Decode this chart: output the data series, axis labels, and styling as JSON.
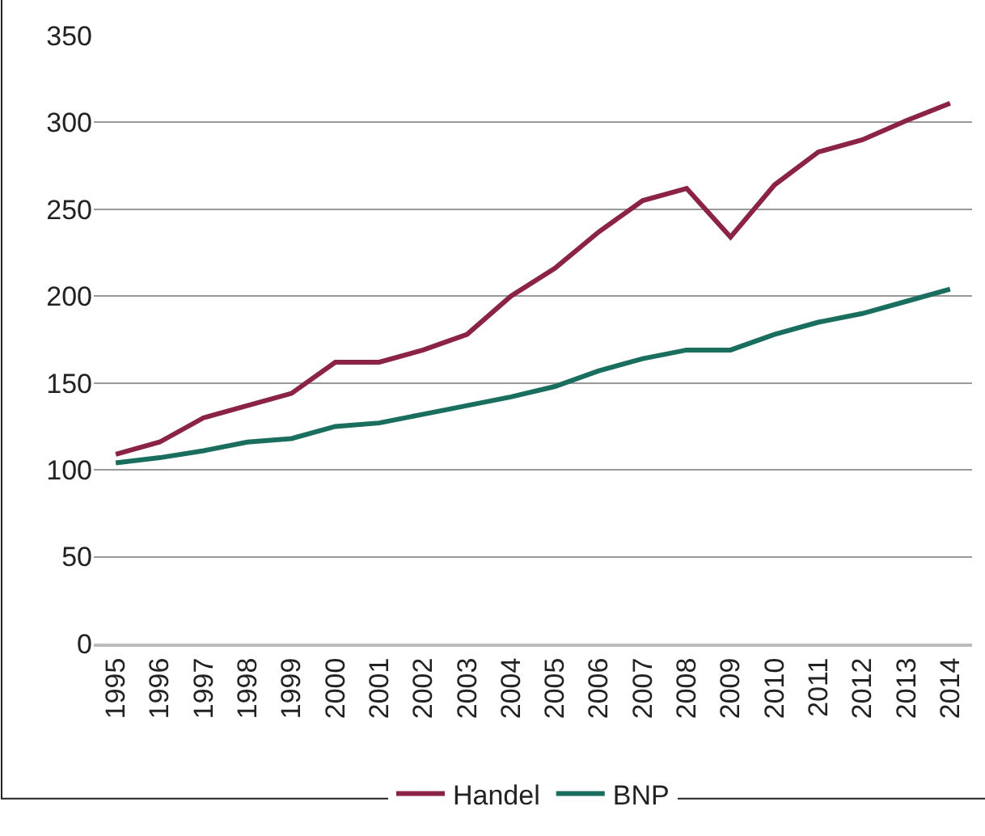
{
  "chart_data": {
    "type": "line",
    "categories": [
      "1995",
      "1996",
      "1997",
      "1998",
      "1999",
      "2000",
      "2001",
      "2002",
      "2003",
      "2004",
      "2005",
      "2006",
      "2007",
      "2008",
      "2009",
      "2010",
      "2011",
      "2012",
      "2013",
      "2014"
    ],
    "series": [
      {
        "name": "Handel",
        "color": "#8b2346",
        "values": [
          109,
          116,
          130,
          137,
          144,
          162,
          162,
          169,
          178,
          200,
          216,
          237,
          255,
          262,
          234,
          264,
          283,
          290,
          301,
          311
        ]
      },
      {
        "name": "BNP",
        "color": "#1a6e5e",
        "values": [
          104,
          107,
          111,
          116,
          118,
          125,
          127,
          132,
          137,
          142,
          148,
          157,
          164,
          169,
          169,
          178,
          185,
          190,
          197,
          204
        ]
      }
    ],
    "ylim": [
      0,
      350
    ],
    "yticks": [
      0,
      50,
      100,
      150,
      200,
      250,
      300,
      350
    ],
    "grid": "y",
    "legend": "bottom",
    "marker": "none",
    "line_style": "solid"
  }
}
